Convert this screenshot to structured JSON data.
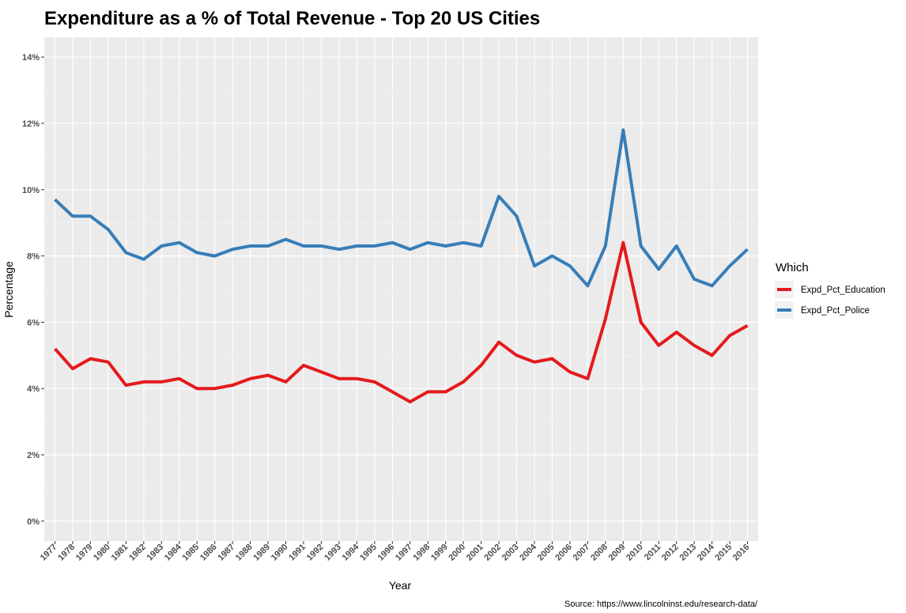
{
  "chart_data": {
    "type": "line",
    "title": "Expenditure as a % of Total Revenue - Top 20 US Cities",
    "xlabel": "Year",
    "ylabel": "Percentage",
    "caption": "Source: https://www.lincolninst.edu/research-data/",
    "x": [
      "1977",
      "1978",
      "1979",
      "1980",
      "1981",
      "1982",
      "1983",
      "1984",
      "1985",
      "1986",
      "1987",
      "1988",
      "1989",
      "1990",
      "1991",
      "1992",
      "1993",
      "1994",
      "1995",
      "1996",
      "1997",
      "1998",
      "1999",
      "2000",
      "2001",
      "2002",
      "2003",
      "2004",
      "2005",
      "2006",
      "2007",
      "2008",
      "2009",
      "2010",
      "2011",
      "2012",
      "2013",
      "2014",
      "2015",
      "2016"
    ],
    "ylim": [
      -0.6,
      14.6
    ],
    "yticks": [
      0,
      2,
      4,
      6,
      8,
      10,
      12,
      14
    ],
    "ytick_labels": [
      "0%",
      "2%",
      "4%",
      "6%",
      "8%",
      "10%",
      "12%",
      "14%"
    ],
    "grid": true,
    "legend": {
      "title": "Which",
      "placement": "right"
    },
    "series": [
      {
        "name": "Expd_Pct_Education",
        "color": "#e41a1c",
        "values": [
          5.2,
          4.6,
          4.9,
          4.8,
          4.1,
          4.2,
          4.2,
          4.3,
          4.0,
          4.0,
          4.1,
          4.3,
          4.4,
          4.2,
          4.7,
          4.5,
          4.3,
          4.3,
          4.2,
          3.9,
          3.6,
          3.9,
          3.9,
          4.2,
          4.7,
          5.4,
          5.0,
          4.8,
          4.9,
          4.5,
          4.3,
          6.1,
          8.4,
          6.0,
          5.3,
          5.7,
          5.3,
          5.0,
          5.6,
          5.9
        ]
      },
      {
        "name": "Expd_Pct_Police",
        "color": "#377eb8",
        "values": [
          9.7,
          9.2,
          9.2,
          8.8,
          8.1,
          7.9,
          8.3,
          8.4,
          8.1,
          8.0,
          8.2,
          8.3,
          8.3,
          8.5,
          8.3,
          8.3,
          8.2,
          8.3,
          8.3,
          8.4,
          8.2,
          8.4,
          8.3,
          8.4,
          8.3,
          9.8,
          9.2,
          7.7,
          8.0,
          7.7,
          7.1,
          8.3,
          11.8,
          8.3,
          7.6,
          8.3,
          7.3,
          7.1,
          7.7,
          8.2
        ]
      }
    ]
  }
}
